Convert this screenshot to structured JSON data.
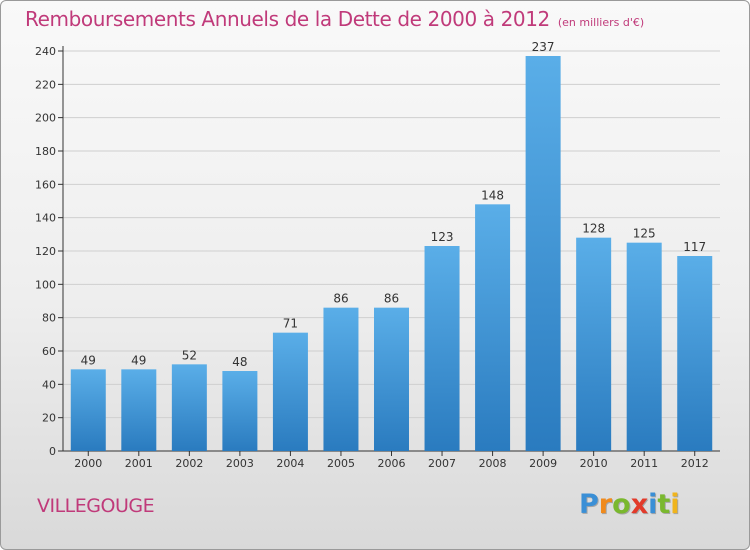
{
  "title": "Remboursements Annuels de la Dette de 2000 à 2012",
  "unit": "(en milliers d'€)",
  "city": "VILLEGOUGE",
  "logo": {
    "letters": [
      "P",
      "r",
      "o",
      "x",
      "i",
      "t",
      "i"
    ],
    "colors": [
      "#3a8fd6",
      "#f08a1c",
      "#7ab82e",
      "#e23a2a",
      "#3a8fd6",
      "#7ab82e",
      "#f0b41c"
    ]
  },
  "colors": {
    "bar_top": "#5aaee8",
    "bar_bottom": "#2a7bbf",
    "title": "#c03a7a",
    "grid": "#cfcfcf",
    "axis": "#333333"
  },
  "chart_data": {
    "type": "bar",
    "categories": [
      "2000",
      "2001",
      "2002",
      "2003",
      "2004",
      "2005",
      "2006",
      "2007",
      "2008",
      "2009",
      "2010",
      "2011",
      "2012"
    ],
    "values": [
      49,
      49,
      52,
      48,
      71,
      86,
      86,
      123,
      148,
      237,
      128,
      125,
      117
    ],
    "ylim": [
      0,
      240
    ],
    "yticks": [
      0,
      20,
      40,
      60,
      80,
      100,
      120,
      140,
      160,
      180,
      200,
      220,
      240
    ],
    "grid": true,
    "data_labels": true
  }
}
